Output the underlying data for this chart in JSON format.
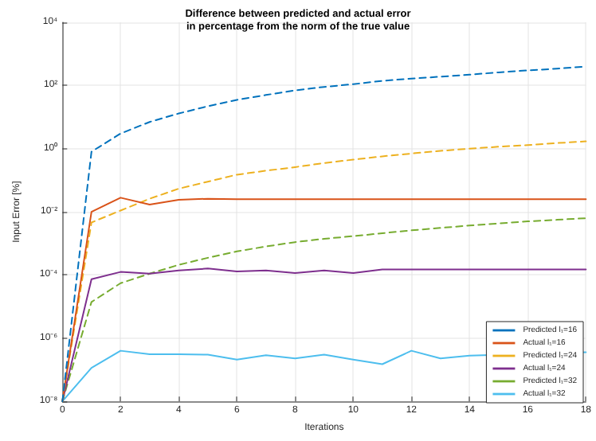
{
  "chart_data": {
    "type": "line",
    "title": "Difference between predicted and actual error\nin percentage from the norm of the true value",
    "xlabel": "Iterations",
    "ylabel": "Input Error [%]",
    "x": [
      0,
      1,
      2,
      3,
      4,
      5,
      6,
      7,
      8,
      9,
      10,
      11,
      12,
      13,
      14,
      15,
      16,
      17,
      18
    ],
    "series": [
      {
        "name": "Predicted l₁=16",
        "color": "#0072bd",
        "line_style": "dashed",
        "values": [
          1e-08,
          0.8,
          3,
          7,
          13,
          22,
          35,
          50,
          70,
          90,
          110,
          140,
          165,
          190,
          220,
          260,
          300,
          340,
          400
        ]
      },
      {
        "name": "Actual l₁=16",
        "color": "#d95319",
        "line_style": "solid",
        "values": [
          1e-08,
          0.01,
          0.028,
          0.017,
          0.024,
          0.026,
          0.025,
          0.025,
          0.025,
          0.025,
          0.025,
          0.025,
          0.025,
          0.025,
          0.025,
          0.025,
          0.025,
          0.025,
          0.025
        ]
      },
      {
        "name": "Predicted l₁=24",
        "color": "#edb120",
        "line_style": "dashed",
        "values": [
          1e-08,
          0.0046,
          0.011,
          0.026,
          0.054,
          0.09,
          0.15,
          0.2,
          0.26,
          0.35,
          0.45,
          0.57,
          0.7,
          0.85,
          1,
          1.15,
          1.3,
          1.5,
          1.7
        ]
      },
      {
        "name": "Actual l₁=24",
        "color": "#7e2f8e",
        "line_style": "solid",
        "values": [
          1e-08,
          7.4e-05,
          0.000125,
          0.00011,
          0.00014,
          0.00016,
          0.00013,
          0.00014,
          0.000115,
          0.00014,
          0.000115,
          0.00015,
          0.00015,
          0.00015,
          0.00015,
          0.00015,
          0.00015,
          0.00015,
          0.00015
        ]
      },
      {
        "name": "Predicted l₁=32",
        "color": "#77ac30",
        "line_style": "dashed",
        "values": [
          1e-08,
          1.4e-05,
          5.5e-05,
          0.00011,
          0.00021,
          0.00035,
          0.00056,
          0.0008,
          0.0011,
          0.0014,
          0.0017,
          0.0021,
          0.0026,
          0.0031,
          0.0037,
          0.0043,
          0.005,
          0.0056,
          0.0063
        ]
      },
      {
        "name": "Actual l₁=32",
        "color": "#4dbeee",
        "line_style": "solid",
        "values": [
          1e-08,
          1.15e-07,
          4e-07,
          3.1e-07,
          3.1e-07,
          3e-07,
          2.1e-07,
          2.9e-07,
          2.3e-07,
          3e-07,
          2.1e-07,
          1.5e-07,
          4e-07,
          2.3e-07,
          2.8e-07,
          null,
          null,
          null,
          3.6e-07
        ]
      }
    ],
    "xlim": [
      0,
      18
    ],
    "xticks": [
      0,
      2,
      4,
      6,
      8,
      10,
      12,
      14,
      16,
      18
    ],
    "log": "y",
    "ylim": [
      1e-08,
      10000
    ],
    "yticks": [
      {
        "value": 1e-08,
        "label": "10⁻⁸"
      },
      {
        "value": 1e-06,
        "label": "10⁻⁶"
      },
      {
        "value": 0.0001,
        "label": "10⁻⁴"
      },
      {
        "value": 0.01,
        "label": "10⁻²"
      },
      {
        "value": 1,
        "label": "10⁰"
      },
      {
        "value": 100,
        "label": "10²"
      },
      {
        "value": 10000,
        "label": "10⁴"
      }
    ],
    "grid": true,
    "legend": "bottom right",
    "marker": "none"
  }
}
